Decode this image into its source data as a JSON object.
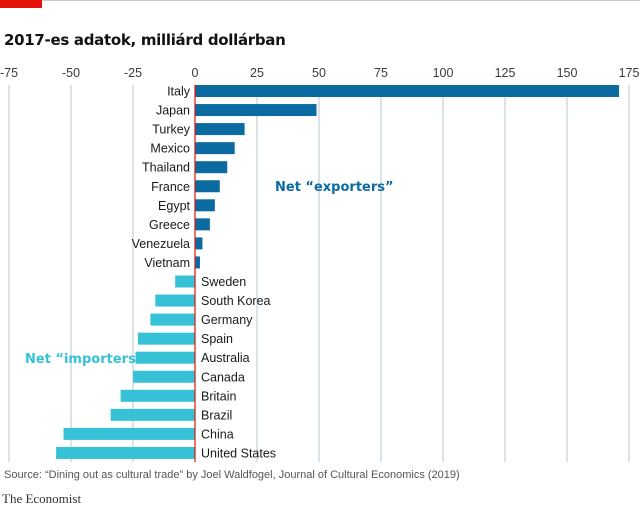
{
  "title": "2017-es adatok, milliárd dollárban",
  "source": "Source: “Dining out as cultural trade” by Joel Waldfogel, Journal of Cultural Economics (2019)",
  "brand": "The Economist",
  "colors": {
    "exporters": "#0b6aa0",
    "importers": "#37c1d6",
    "brand_red": "#e3120b",
    "grid": "#b7c6d0",
    "zero_line": "#e3120b"
  },
  "chart_data": {
    "type": "bar",
    "orientation": "horizontal",
    "xlim": [
      -75,
      175
    ],
    "xticks": [
      -75,
      -50,
      -25,
      0,
      25,
      50,
      75,
      100,
      125,
      150,
      175
    ],
    "categories": [
      "Italy",
      "Japan",
      "Turkey",
      "Mexico",
      "Thailand",
      "France",
      "Egypt",
      "Greece",
      "Venezuela",
      "Vietnam",
      "Sweden",
      "South Korea",
      "Germany",
      "Spain",
      "Australia",
      "Canada",
      "Britain",
      "Brazil",
      "China",
      "United States"
    ],
    "values": [
      171,
      49,
      20,
      16,
      13,
      10,
      8,
      6,
      3,
      2,
      -8,
      -16,
      -18,
      -23,
      -24,
      -25,
      -30,
      -34,
      -53,
      -56
    ],
    "series_annotations": [
      {
        "name": "Net “exporters”",
        "group": "exporters"
      },
      {
        "name": "Net “importers”",
        "group": "importers"
      }
    ]
  }
}
